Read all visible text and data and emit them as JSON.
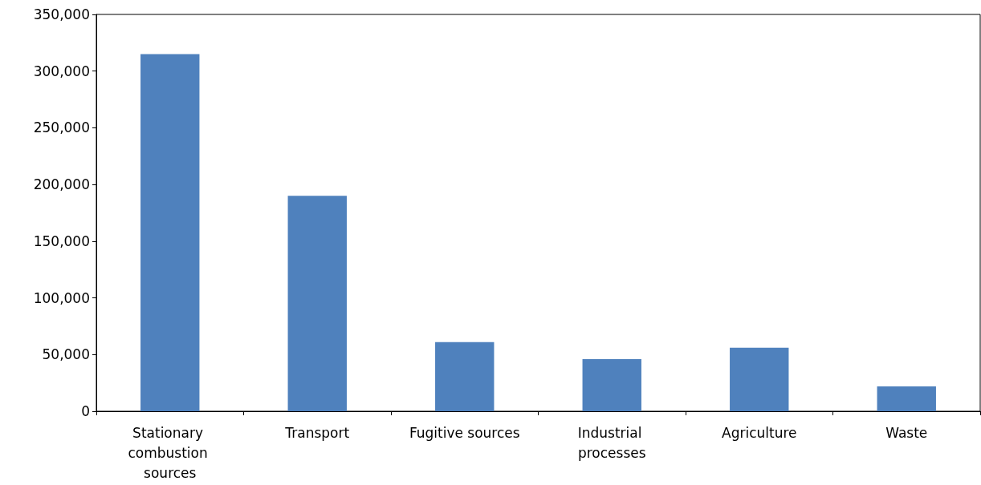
{
  "chart_data": {
    "type": "bar",
    "categories": [
      "Stationary combustion sources",
      "Transport",
      "Fugitive sources",
      "Industrial processes",
      "Agriculture",
      "Waste"
    ],
    "values": [
      315000,
      190000,
      61000,
      46000,
      56000,
      22000
    ],
    "color": "#4f81bd",
    "ylim": [
      0,
      350000
    ],
    "yticks": [
      0,
      {
        "value": 50000,
        "label": "50,000"
      },
      {
        "value": 100000,
        "label": "100,000"
      },
      {
        "value": 150000,
        "label": "150,000"
      },
      {
        "value": 200000,
        "label": "200,000"
      },
      {
        "value": 250000,
        "label": "250,000"
      },
      {
        "value": 300000,
        "label": "300,000"
      },
      {
        "value": 350000,
        "label": "350,000"
      }
    ]
  }
}
